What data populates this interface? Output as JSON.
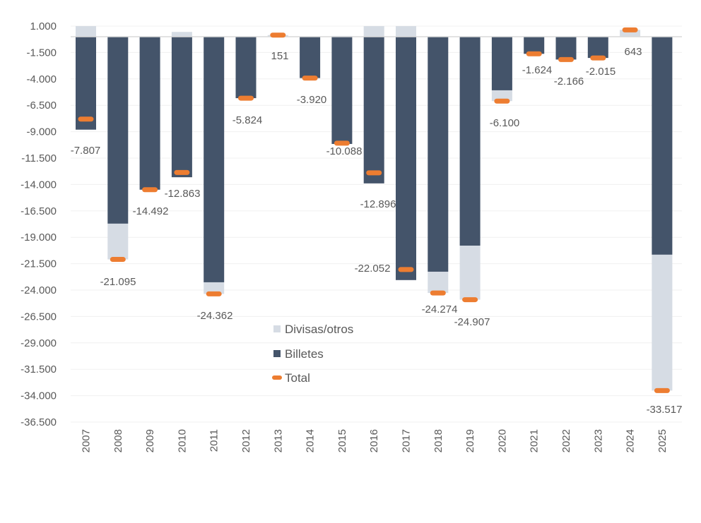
{
  "chart_data": {
    "type": "bar",
    "stacked": true,
    "title": "",
    "xlabel": "",
    "ylabel": "",
    "ylim": [
      -36500,
      1000
    ],
    "yticks": [
      1000,
      -1500,
      -4000,
      -6500,
      -9000,
      -11500,
      -14000,
      -16500,
      -19000,
      -21500,
      -24000,
      -26500,
      -29000,
      -31500,
      -34000,
      -36500
    ],
    "ytick_labels": [
      "1.000",
      "-1.500",
      "-4.000",
      "-6.500",
      "-9.000",
      "-11.500",
      "-14.000",
      "-16.500",
      "-19.000",
      "-21.500",
      "-24.000",
      "-26.500",
      "-29.000",
      "-31.500",
      "-34.000",
      "-36.500"
    ],
    "grid": true,
    "categories": [
      "2007",
      "2008",
      "2009",
      "2010",
      "2011",
      "2012",
      "2013",
      "2014",
      "2015",
      "2016",
      "2017",
      "2018",
      "2019",
      "2020",
      "2021",
      "2022",
      "2023",
      "2024",
      "2025"
    ],
    "series": [
      {
        "name": "Divisas/otros",
        "kind": "bar",
        "color": "#D6DCE4",
        "values": [
          1000,
          -3385,
          0,
          450,
          -1100,
          0,
          151,
          0,
          72,
          1000,
          1000,
          -2014,
          -5117,
          -1020,
          0,
          0,
          0,
          643,
          -12867
        ]
      },
      {
        "name": "Billetes",
        "kind": "bar",
        "color": "#44546A",
        "values": [
          -8807,
          -17710,
          -14492,
          -13313,
          -23262,
          -5824,
          0,
          -3920,
          -10160,
          -13896,
          -23052,
          -22260,
          -19790,
          -5080,
          -1624,
          -2166,
          -2015,
          0,
          -20650
        ]
      },
      {
        "name": "Total",
        "kind": "marker",
        "color": "#ED7D31",
        "values": [
          -7807,
          -21095,
          -14492,
          -12863,
          -24362,
          -5824,
          151,
          -3920,
          -10088,
          -12896,
          -22052,
          -24274,
          -24907,
          -6100,
          -1624,
          -2166,
          -2015,
          643,
          -33517
        ]
      }
    ],
    "data_labels": [
      "-7.807",
      "-21.095",
      "-14.492",
      "-12.863",
      "-24.362",
      "-5.824",
      "151",
      "-3.920",
      "-10.088",
      "-12.896",
      "-22.052",
      "-24.274",
      "-24.907",
      "-6.100",
      "-1.624",
      "-2.166",
      "-2.015",
      "643",
      "-33.517"
    ],
    "legend": {
      "position": "center",
      "items": [
        {
          "label": "Divisas/otros",
          "color": "#D6DCE4",
          "shape": "square"
        },
        {
          "label": "Billetes",
          "color": "#44546A",
          "shape": "square"
        },
        {
          "label": "Total",
          "color": "#ED7D31",
          "shape": "dash"
        }
      ]
    }
  }
}
